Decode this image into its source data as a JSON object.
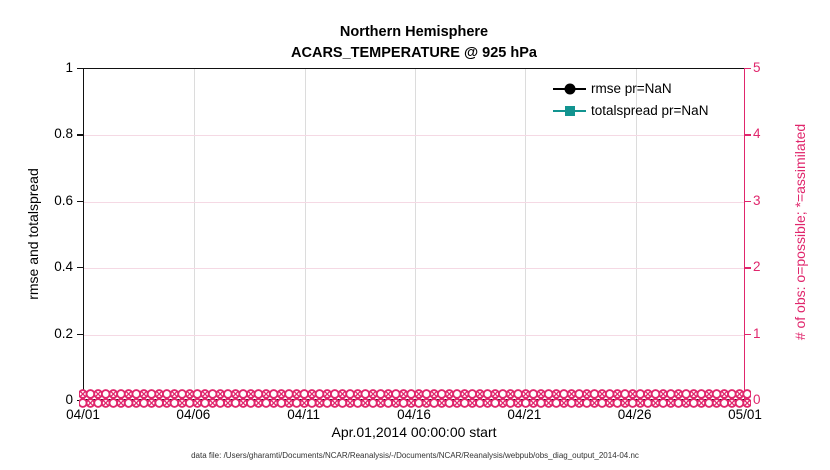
{
  "title": {
    "line1": "Northern Hemisphere",
    "line2": "ACARS_TEMPERATURE @ 925 hPa"
  },
  "axes": {
    "left": {
      "label": "rmse and totalspread",
      "ticks": [
        "0",
        "0.2",
        "0.4",
        "0.6",
        "0.8",
        "1"
      ],
      "range": [
        0,
        1
      ]
    },
    "right": {
      "label": "# of obs: o=possible; *=assimilated",
      "ticks": [
        "0",
        "1",
        "2",
        "3",
        "4",
        "5"
      ],
      "range": [
        0,
        5
      ]
    },
    "x": {
      "label": "Apr.01,2014 00:00:00 start",
      "ticks": [
        "04/01",
        "04/06",
        "04/11",
        "04/16",
        "04/21",
        "04/26",
        "05/01"
      ]
    }
  },
  "legend": {
    "items": [
      {
        "label": "rmse pr=NaN",
        "color": "#000000",
        "marker": "circle"
      },
      {
        "label": "totalspread pr=NaN",
        "color": "#129490",
        "marker": "square"
      }
    ]
  },
  "footer": "data file: /Users/gharamti/Documents/NCAR/Reanalysis/-/Documents/NCAR/Reanalysis/webpub/obs_diag_output_2014-04.nc",
  "colors": {
    "pink": "#e0266c",
    "grid_pink": "#f5d9e4",
    "grid_gray": "#dcdcdc",
    "teal": "#129490",
    "black": "#000000"
  },
  "chart_data": {
    "type": "line",
    "title": "Northern Hemisphere",
    "subtitle": "ACARS_TEMPERATURE @ 925 hPa",
    "xlabel": "Apr.01,2014 00:00:00 start",
    "ylabel_left": "rmse and totalspread",
    "ylabel_right": "# of obs: o=possible; *=assimilated",
    "x_ticks": [
      "04/01",
      "04/06",
      "04/11",
      "04/16",
      "04/21",
      "04/26",
      "05/01"
    ],
    "ylim_left": [
      0,
      1
    ],
    "ylim_right": [
      0,
      5
    ],
    "grid": true,
    "legend_position": "upper-right-inside, no box",
    "series": [
      {
        "name": "rmse pr=NaN",
        "axis": "left",
        "values": "NaN — no curve plotted"
      },
      {
        "name": "totalspread pr=NaN",
        "axis": "left",
        "values": "NaN — no curve plotted"
      },
      {
        "name": "possible obs (o markers)",
        "axis": "right",
        "values": "0 at every analysis time from 04/01 to 05/01 (dense band along y=0)"
      },
      {
        "name": "assimilated obs (* markers)",
        "axis": "right",
        "values": "0 at every analysis time from 04/01 to 05/01 (dense band along y=0)"
      }
    ]
  }
}
